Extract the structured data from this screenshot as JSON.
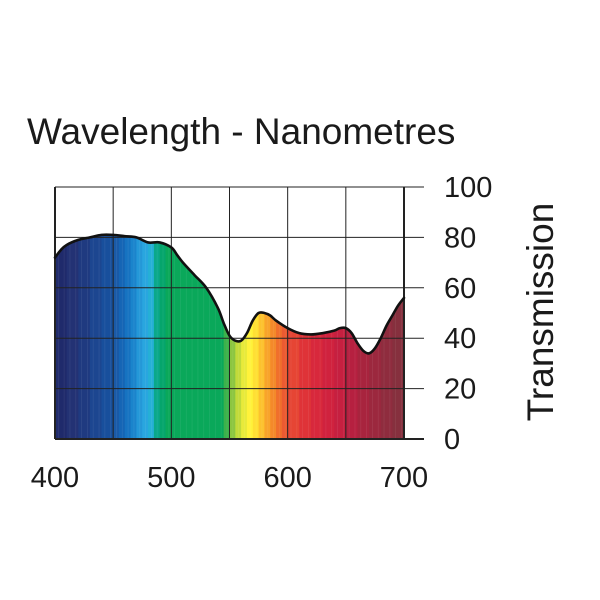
{
  "chart_data": {
    "type": "area",
    "title": "Wavelength - Nanometres",
    "xlabel": "",
    "ylabel": "Transmission",
    "xlim": [
      400,
      700
    ],
    "ylim": [
      0,
      100
    ],
    "x_ticks": [
      400,
      500,
      600,
      700
    ],
    "x_tick_labels": [
      "400",
      "500",
      "600",
      "700"
    ],
    "x_grid": [
      400,
      450,
      500,
      550,
      600,
      650,
      700
    ],
    "y_ticks": [
      0,
      20,
      40,
      60,
      80,
      100
    ],
    "y_tick_labels": [
      "0",
      "20",
      "40",
      "60",
      "80",
      "100"
    ],
    "y_axis_position": "right",
    "grid": true,
    "series": [
      {
        "name": "Transmission",
        "x": [
          400,
          405,
          410,
          420,
          430,
          440,
          450,
          460,
          470,
          480,
          490,
          500,
          505,
          510,
          520,
          530,
          540,
          545,
          550,
          555,
          560,
          565,
          570,
          575,
          580,
          585,
          590,
          600,
          610,
          620,
          630,
          640,
          645,
          650,
          655,
          660,
          665,
          670,
          675,
          680,
          685,
          690,
          695,
          700
        ],
        "y": [
          72,
          75,
          77,
          79,
          80,
          81,
          81,
          80.5,
          80,
          78,
          78,
          76,
          73,
          70,
          65,
          60,
          52,
          46,
          41,
          39,
          39,
          42,
          47,
          50,
          50,
          49,
          47,
          44,
          42,
          41.5,
          42,
          43,
          44,
          44,
          42,
          38,
          35,
          34,
          36,
          40,
          45,
          49,
          53,
          56
        ]
      }
    ],
    "spectrum_colors": [
      {
        "from": 400,
        "to": 410,
        "color": "#1f2a6b"
      },
      {
        "from": 410,
        "to": 420,
        "color": "#233274"
      },
      {
        "from": 420,
        "to": 430,
        "color": "#1f3a80"
      },
      {
        "from": 430,
        "to": 440,
        "color": "#1c4690"
      },
      {
        "from": 440,
        "to": 450,
        "color": "#184f9c"
      },
      {
        "from": 450,
        "to": 455,
        "color": "#1a5aa8"
      },
      {
        "from": 455,
        "to": 460,
        "color": "#1565b5"
      },
      {
        "from": 460,
        "to": 465,
        "color": "#1673c1"
      },
      {
        "from": 465,
        "to": 470,
        "color": "#1a84cc"
      },
      {
        "from": 470,
        "to": 475,
        "color": "#2498d8"
      },
      {
        "from": 475,
        "to": 480,
        "color": "#29a6df"
      },
      {
        "from": 480,
        "to": 485,
        "color": "#25b0d6"
      },
      {
        "from": 485,
        "to": 490,
        "color": "#0aa88a"
      },
      {
        "from": 490,
        "to": 495,
        "color": "#05a56c"
      },
      {
        "from": 495,
        "to": 545,
        "color": "#0aa85a"
      },
      {
        "from": 545,
        "to": 550,
        "color": "#3cb24b"
      },
      {
        "from": 550,
        "to": 555,
        "color": "#8cc640"
      },
      {
        "from": 555,
        "to": 560,
        "color": "#c2da3a"
      },
      {
        "from": 560,
        "to": 565,
        "color": "#e8ea3a"
      },
      {
        "from": 565,
        "to": 570,
        "color": "#fff23a"
      },
      {
        "from": 570,
        "to": 575,
        "color": "#ffe033"
      },
      {
        "from": 575,
        "to": 580,
        "color": "#fcc22e"
      },
      {
        "from": 580,
        "to": 585,
        "color": "#f8a42a"
      },
      {
        "from": 585,
        "to": 590,
        "color": "#f48a2a"
      },
      {
        "from": 590,
        "to": 595,
        "color": "#f06f2c"
      },
      {
        "from": 595,
        "to": 600,
        "color": "#ec5a30"
      },
      {
        "from": 600,
        "to": 610,
        "color": "#e64534"
      },
      {
        "from": 610,
        "to": 620,
        "color": "#df3338"
      },
      {
        "from": 620,
        "to": 630,
        "color": "#d8283c"
      },
      {
        "from": 630,
        "to": 640,
        "color": "#d0223e"
      },
      {
        "from": 640,
        "to": 650,
        "color": "#c62040"
      },
      {
        "from": 650,
        "to": 660,
        "color": "#b62040"
      },
      {
        "from": 660,
        "to": 670,
        "color": "#a8243e"
      },
      {
        "from": 670,
        "to": 680,
        "color": "#9c283e"
      },
      {
        "from": 680,
        "to": 690,
        "color": "#8f2c3e"
      },
      {
        "from": 690,
        "to": 700,
        "color": "#86303e"
      }
    ],
    "line_color": "#111111",
    "grid_color": "#222222",
    "background_color": "#ffffff"
  }
}
